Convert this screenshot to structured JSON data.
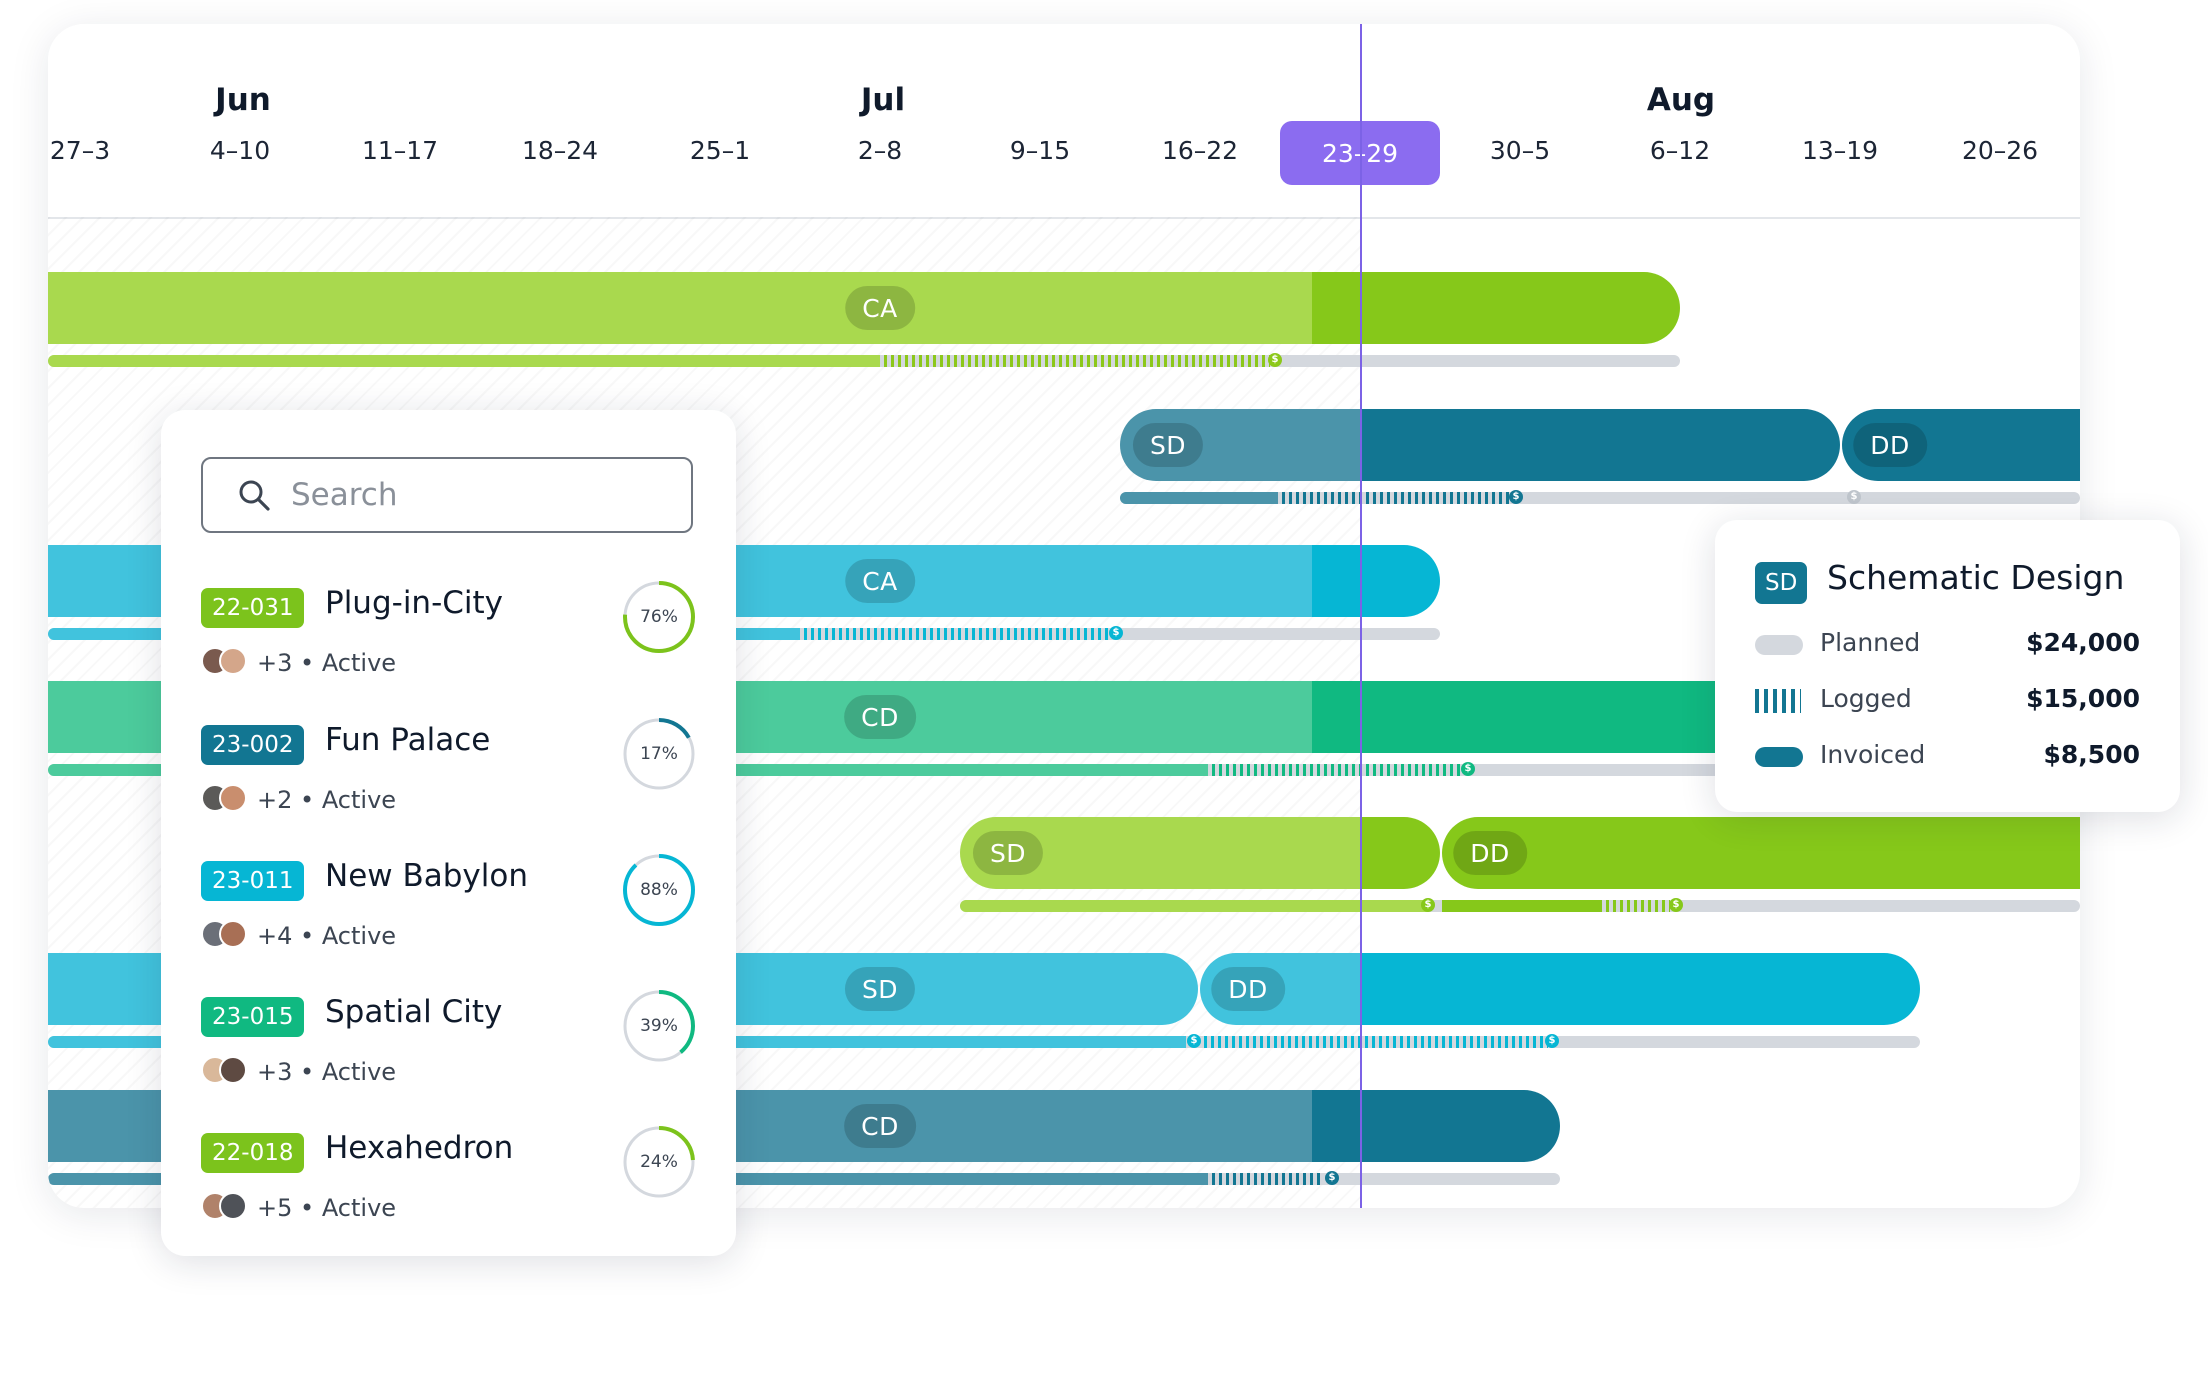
{
  "timeline": {
    "months": [
      "Jun",
      "Jul",
      "Aug"
    ],
    "weeks": [
      "27–3",
      "4–10",
      "11–17",
      "18–24",
      "25–1",
      "2–8",
      "9–15",
      "16–22",
      "23–29",
      "30–5",
      "6–12",
      "13–19",
      "20–26"
    ],
    "current_week": "23–29"
  },
  "rows": [
    {
      "phases": [
        "CA"
      ],
      "color": "#8cc81a"
    },
    {
      "phases": [
        "SD",
        "DD"
      ],
      "color": "#127692"
    },
    {
      "phases": [
        "CA"
      ],
      "color": "#06b6d4"
    },
    {
      "phases": [
        "CD"
      ],
      "color": "#10b981"
    },
    {
      "phases": [
        "SD",
        "DD"
      ],
      "color": "#8cc81a"
    },
    {
      "phases": [
        "SD",
        "DD"
      ],
      "color": "#06b6d4"
    },
    {
      "phases": [
        "CD"
      ],
      "color": "#127692"
    }
  ],
  "search": {
    "placeholder": "Search"
  },
  "projects": [
    {
      "code": "22-031",
      "name": "Plug-in-City",
      "members": "+3",
      "status": "Active",
      "progress": "76%",
      "color": "#7cc31c"
    },
    {
      "code": "23-002",
      "name": "Fun Palace",
      "members": "+2",
      "status": "Active",
      "progress": "17%",
      "color": "#127692"
    },
    {
      "code": "23-011",
      "name": "New Babylon",
      "members": "+4",
      "status": "Active",
      "progress": "88%",
      "color": "#06b6d4"
    },
    {
      "code": "23-015",
      "name": "Spatial City",
      "members": "+3",
      "status": "Active",
      "progress": "39%",
      "color": "#10b981"
    },
    {
      "code": "22-018",
      "name": "Hexahedron",
      "members": "+5",
      "status": "Active",
      "progress": "24%",
      "color": "#7cc31c"
    }
  ],
  "tooltip": {
    "badge": "SD",
    "title": "Schematic Design",
    "rows": [
      {
        "label": "Planned",
        "value": "$24,000"
      },
      {
        "label": "Logged",
        "value": "$15,000"
      },
      {
        "label": "Invoiced",
        "value": "$8,500"
      }
    ]
  }
}
